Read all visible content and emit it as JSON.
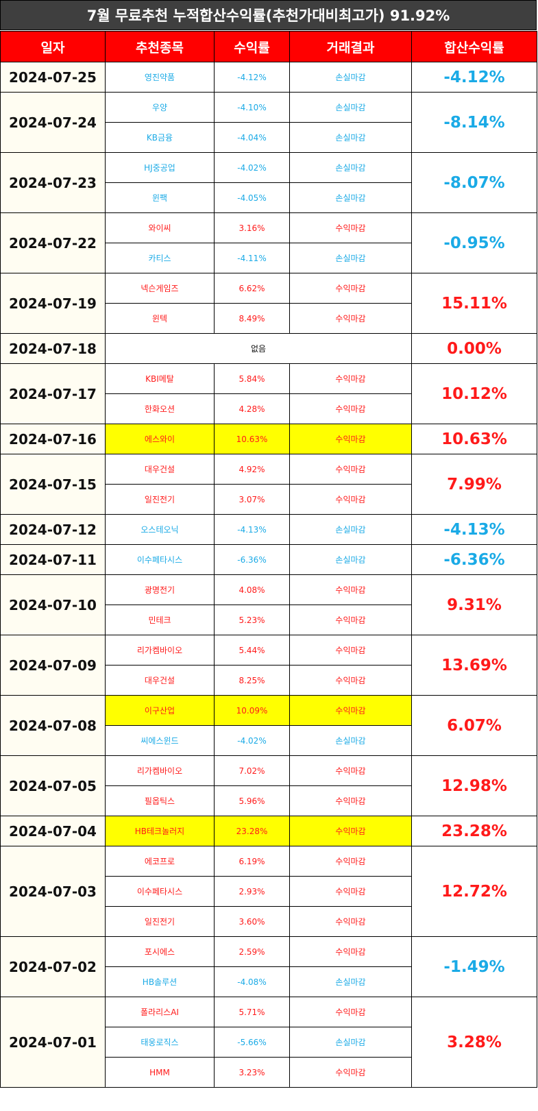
{
  "title": "7월 무료추천 누적합산수익률(추천가대비최고가) 91.92%",
  "headers": [
    "일자",
    "추천종목",
    "수익률",
    "거래결과",
    "합산수익률"
  ],
  "colors": {
    "positive": "#ff1a1a",
    "negative": "#1aaae6",
    "highlight": "#ffff00",
    "header_bg": "#ff0000",
    "title_bg": "#3f3f3f"
  },
  "days": [
    {
      "date": "2024-07-25",
      "total": "-4.12%",
      "tone": "neg",
      "items": [
        {
          "stock": "영진약품",
          "return": "-4.12%",
          "result": "손실마감",
          "tone": "neg"
        }
      ]
    },
    {
      "date": "2024-07-24",
      "total": "-8.14%",
      "tone": "neg",
      "items": [
        {
          "stock": "우양",
          "return": "-4.10%",
          "result": "손실마감",
          "tone": "neg"
        },
        {
          "stock": "KB금융",
          "return": "-4.04%",
          "result": "손실마감",
          "tone": "neg"
        }
      ]
    },
    {
      "date": "2024-07-23",
      "total": "-8.07%",
      "tone": "neg",
      "items": [
        {
          "stock": "HJ중공업",
          "return": "-4.02%",
          "result": "손실마감",
          "tone": "neg"
        },
        {
          "stock": "윈팩",
          "return": "-4.05%",
          "result": "손실마감",
          "tone": "neg"
        }
      ]
    },
    {
      "date": "2024-07-22",
      "total": "-0.95%",
      "tone": "neg",
      "items": [
        {
          "stock": "와이씨",
          "return": "3.16%",
          "result": "수익마감",
          "tone": "pos"
        },
        {
          "stock": "카티스",
          "return": "-4.11%",
          "result": "손실마감",
          "tone": "neg"
        }
      ]
    },
    {
      "date": "2024-07-19",
      "total": "15.11%",
      "tone": "pos",
      "items": [
        {
          "stock": "넥슨게임즈",
          "return": "6.62%",
          "result": "수익마감",
          "tone": "pos"
        },
        {
          "stock": "윈텍",
          "return": "8.49%",
          "result": "수익마감",
          "tone": "pos"
        }
      ]
    },
    {
      "date": "2024-07-18",
      "total": "0.00%",
      "tone": "pos",
      "none": "없음",
      "items": []
    },
    {
      "date": "2024-07-17",
      "total": "10.12%",
      "tone": "pos",
      "items": [
        {
          "stock": "KBI메탈",
          "return": "5.84%",
          "result": "수익마감",
          "tone": "pos"
        },
        {
          "stock": "한화오션",
          "return": "4.28%",
          "result": "수익마감",
          "tone": "pos"
        }
      ]
    },
    {
      "date": "2024-07-16",
      "total": "10.63%",
      "tone": "pos",
      "items": [
        {
          "stock": "에스와이",
          "return": "10.63%",
          "result": "수익마감",
          "tone": "pos",
          "highlight": true
        }
      ]
    },
    {
      "date": "2024-07-15",
      "total": "7.99%",
      "tone": "pos",
      "items": [
        {
          "stock": "대우건설",
          "return": "4.92%",
          "result": "수익마감",
          "tone": "pos"
        },
        {
          "stock": "일진전기",
          "return": "3.07%",
          "result": "수익마감",
          "tone": "pos"
        }
      ]
    },
    {
      "date": "2024-07-12",
      "total": "-4.13%",
      "tone": "neg",
      "items": [
        {
          "stock": "오스테오닉",
          "return": "-4.13%",
          "result": "손실마감",
          "tone": "neg"
        }
      ]
    },
    {
      "date": "2024-07-11",
      "total": "-6.36%",
      "tone": "neg",
      "items": [
        {
          "stock": "이수페타시스",
          "return": "-6.36%",
          "result": "손실마감",
          "tone": "neg"
        }
      ]
    },
    {
      "date": "2024-07-10",
      "total": "9.31%",
      "tone": "pos",
      "items": [
        {
          "stock": "광명전기",
          "return": "4.08%",
          "result": "수익마감",
          "tone": "pos"
        },
        {
          "stock": "민테크",
          "return": "5.23%",
          "result": "수익마감",
          "tone": "pos"
        }
      ]
    },
    {
      "date": "2024-07-09",
      "total": "13.69%",
      "tone": "pos",
      "items": [
        {
          "stock": "리가켐바이오",
          "return": "5.44%",
          "result": "수익마감",
          "tone": "pos"
        },
        {
          "stock": "대우건설",
          "return": "8.25%",
          "result": "수익마감",
          "tone": "pos"
        }
      ]
    },
    {
      "date": "2024-07-08",
      "total": "6.07%",
      "tone": "pos",
      "items": [
        {
          "stock": "이구산업",
          "return": "10.09%",
          "result": "수익마감",
          "tone": "pos",
          "highlight": true
        },
        {
          "stock": "씨에스윈드",
          "return": "-4.02%",
          "result": "손실마감",
          "tone": "neg"
        }
      ]
    },
    {
      "date": "2024-07-05",
      "total": "12.98%",
      "tone": "pos",
      "items": [
        {
          "stock": "리가켐바이오",
          "return": "7.02%",
          "result": "수익마감",
          "tone": "pos"
        },
        {
          "stock": "필옵틱스",
          "return": "5.96%",
          "result": "수익마감",
          "tone": "pos"
        }
      ]
    },
    {
      "date": "2024-07-04",
      "total": "23.28%",
      "tone": "pos",
      "items": [
        {
          "stock": "HB테크놀러지",
          "return": "23.28%",
          "result": "수익마감",
          "tone": "pos",
          "highlight": true
        }
      ]
    },
    {
      "date": "2024-07-03",
      "total": "12.72%",
      "tone": "pos",
      "items": [
        {
          "stock": "에코프로",
          "return": "6.19%",
          "result": "수익마감",
          "tone": "pos"
        },
        {
          "stock": "이수페타시스",
          "return": "2.93%",
          "result": "수익마감",
          "tone": "pos"
        },
        {
          "stock": "일진전기",
          "return": "3.60%",
          "result": "수익마감",
          "tone": "pos"
        }
      ]
    },
    {
      "date": "2024-07-02",
      "total": "-1.49%",
      "tone": "neg",
      "items": [
        {
          "stock": "포시에스",
          "return": "2.59%",
          "result": "수익마감",
          "tone": "pos"
        },
        {
          "stock": "HB솔루션",
          "return": "-4.08%",
          "result": "손실마감",
          "tone": "neg"
        }
      ]
    },
    {
      "date": "2024-07-01",
      "total": "3.28%",
      "tone": "pos",
      "items": [
        {
          "stock": "폴라리스AI",
          "return": "5.71%",
          "result": "수익마감",
          "tone": "pos"
        },
        {
          "stock": "태웅로직스",
          "return": "-5.66%",
          "result": "손실마감",
          "tone": "neg"
        },
        {
          "stock": "HMM",
          "return": "3.23%",
          "result": "수익마감",
          "tone": "pos"
        }
      ]
    }
  ]
}
